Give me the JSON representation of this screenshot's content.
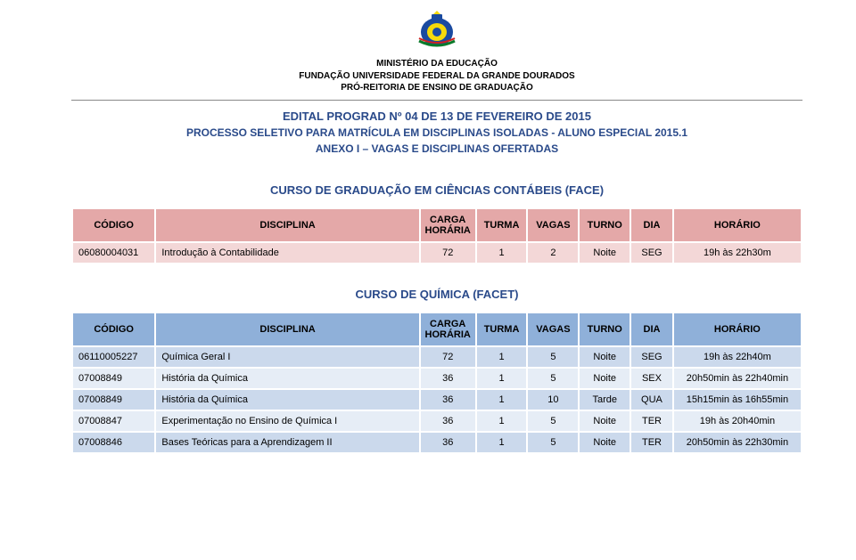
{
  "header": {
    "ministry": "MINISTÉRIO DA EDUCAÇÃO",
    "foundation": "FUNDAÇÃO UNIVERSIDADE FEDERAL DA GRANDE DOURADOS",
    "prograd": "PRÓ-REITORIA DE ENSINO DE GRADUAÇÃO"
  },
  "titles": {
    "edital": "EDITAL PROGRAD Nº 04 DE 13 DE FEVEREIRO DE 2015",
    "processo": "PROCESSO SELETIVO PARA MATRÍCULA EM DISCIPLINAS ISOLADAS - ALUNO ESPECIAL 2015.1",
    "anexo": "ANEXO I – VAGAS E DISCIPLINAS OFERTADAS"
  },
  "col_labels": {
    "codigo": "CÓDIGO",
    "disciplina": "DISCIPLINA",
    "carga": "CARGA HORÁRIA",
    "turma": "TURMA",
    "vagas": "VAGAS",
    "turno": "TURNO",
    "dia": "DIA",
    "horario": "HORÁRIO"
  },
  "table1": {
    "course": "CURSO DE GRADUAÇÃO EM CIÊNCIAS CONTÁBEIS (FACE)",
    "header_bg": "#e4a8a8",
    "row_bg_even": "#f3d7d7",
    "row_bg_odd": "#f9ebeb",
    "rows": [
      {
        "codigo": "06080004031",
        "disciplina": "Introdução à Contabilidade",
        "carga": "72",
        "turma": "1",
        "vagas": "2",
        "turno": "Noite",
        "dia": "SEG",
        "horario": "19h às 22h30m"
      }
    ]
  },
  "table2": {
    "course": "CURSO DE QUÍMICA (FACET)",
    "header_bg": "#8fb0d9",
    "row_bg_even": "#cbd9ec",
    "row_bg_odd": "#e6edf6",
    "rows": [
      {
        "codigo": "06110005227",
        "disciplina": "Química Geral I",
        "carga": "72",
        "turma": "1",
        "vagas": "5",
        "turno": "Noite",
        "dia": "SEG",
        "horario": "19h às 22h40m"
      },
      {
        "codigo": "07008849",
        "disciplina": "História da Química",
        "carga": "36",
        "turma": "1",
        "vagas": "5",
        "turno": "Noite",
        "dia": "SEX",
        "horario": "20h50min às 22h40min"
      },
      {
        "codigo": "07008849",
        "disciplina": "História da Química",
        "carga": "36",
        "turma": "1",
        "vagas": "10",
        "turno": "Tarde",
        "dia": "QUA",
        "horario": "15h15min às 16h55min"
      },
      {
        "codigo": "07008847",
        "disciplina": "Experimentação no Ensino de Química I",
        "carga": "36",
        "turma": "1",
        "vagas": "5",
        "turno": "Noite",
        "dia": "TER",
        "horario": "19h às 20h40min"
      },
      {
        "codigo": "07008846",
        "disciplina": "Bases Teóricas para a Aprendizagem II",
        "carga": "36",
        "turma": "1",
        "vagas": "5",
        "turno": "Noite",
        "dia": "TER",
        "horario": "20h50min às 22h30min"
      }
    ]
  },
  "text_color": "#000000",
  "title_color": "#2a4a8a",
  "background_color": "#ffffff"
}
